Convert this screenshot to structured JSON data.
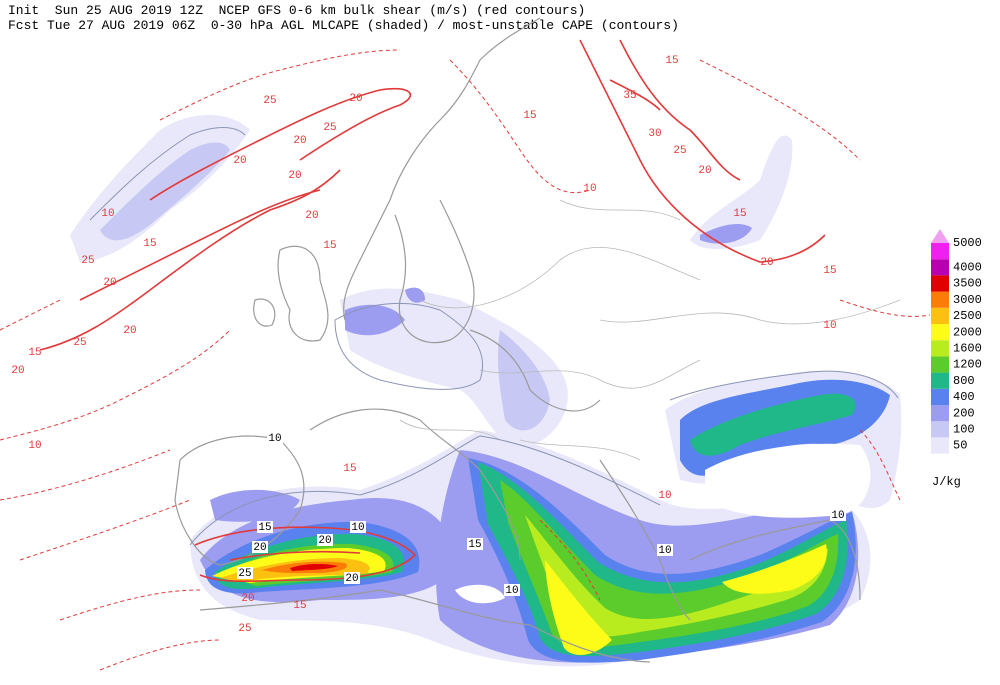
{
  "header": {
    "line1": "Init  Sun 25 AUG 2019 12Z  NCEP GFS 0-6 km bulk shear (m/s) (red contours)",
    "line2": "Fcst Tue 27 AUG 2019 06Z  0-30 hPa AGL MLCAPE (shaded) / most-unstable CAPE (contours)"
  },
  "colorbar": {
    "levels": [
      50,
      100,
      200,
      400,
      800,
      1200,
      1600,
      2000,
      2500,
      3000,
      3500,
      4000,
      5000
    ],
    "colors": [
      "#e8e8fa",
      "#c8c8f4",
      "#9c9cf0",
      "#5a82ee",
      "#20b888",
      "#5ccc2c",
      "#b8ec1e",
      "#fcfc18",
      "#fcc010",
      "#fc7c08",
      "#e00000",
      "#b800b0",
      "#f020f0"
    ],
    "unit": "J/kg"
  },
  "contour_labels": [
    35,
    30,
    25,
    20,
    20,
    15,
    15,
    15,
    10,
    20,
    25,
    20,
    20,
    25,
    20,
    20,
    15,
    15,
    10,
    20,
    25,
    20,
    25,
    15,
    20,
    10,
    10,
    15,
    15,
    10,
    15,
    20,
    20,
    10,
    25,
    20,
    20,
    25,
    15,
    15,
    10,
    10,
    10,
    10
  ]
}
